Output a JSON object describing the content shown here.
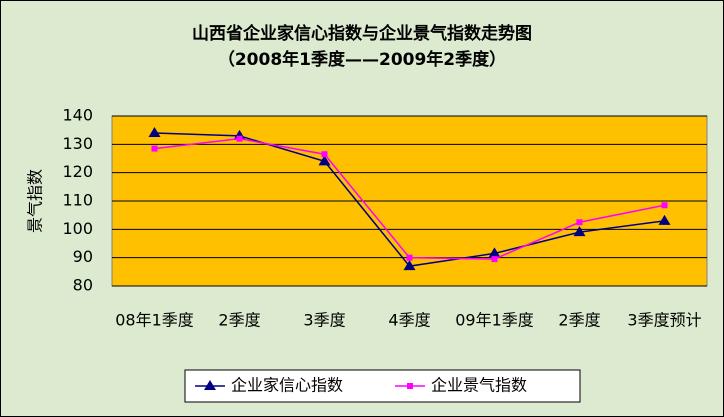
{
  "chart_data": {
    "type": "line",
    "title": "山西省企业家信心指数与企业景气指数走势图",
    "subtitle": "（2008年1季度——2009年2季度）",
    "y_label": "景气指数",
    "categories": [
      "08年1季度",
      "2季度",
      "3季度",
      "4季度",
      "09年1季度",
      "2季度",
      "3季度预计"
    ],
    "series": [
      {
        "name": "企业家信心指数",
        "color": "#000080",
        "marker": "triangle",
        "values": [
          134,
          133,
          124,
          87,
          91.5,
          99,
          103
        ]
      },
      {
        "name": "企业景气指数",
        "color": "#ff00ff",
        "marker": "square",
        "values": [
          128.5,
          132,
          126.5,
          90,
          89.5,
          102.5,
          108.5
        ]
      }
    ],
    "ylim": [
      80,
      140
    ],
    "yticks": [
      80,
      90,
      100,
      110,
      120,
      130,
      140
    ],
    "grid": true
  }
}
